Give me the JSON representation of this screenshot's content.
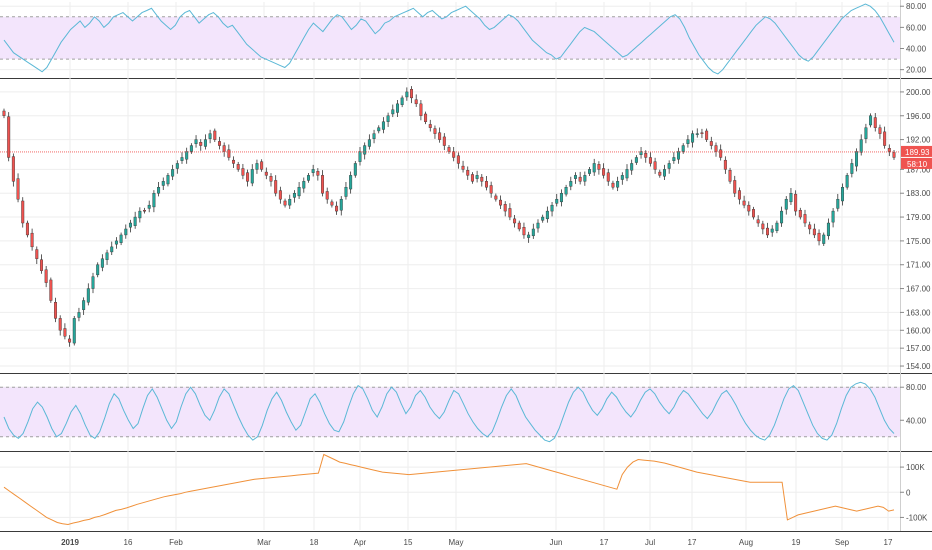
{
  "chart_data": [
    {
      "type": "line",
      "panel": "rsi-top",
      "y_ticks": [
        "80.00",
        "60.00",
        "40.00",
        "20.00"
      ],
      "ylim": [
        14,
        84
      ],
      "band": [
        30,
        70
      ],
      "series": [
        {
          "values": [
            48,
            42,
            36,
            33,
            30,
            27,
            24,
            21,
            18,
            22,
            30,
            38,
            46,
            52,
            58,
            62,
            66,
            60,
            64,
            70,
            66,
            60,
            64,
            70,
            72,
            74,
            70,
            66,
            70,
            74,
            76,
            78,
            72,
            66,
            62,
            58,
            62,
            70,
            74,
            76,
            70,
            64,
            68,
            72,
            74,
            70,
            64,
            60,
            62,
            56,
            50,
            44,
            40,
            36,
            32,
            30,
            28,
            26,
            24,
            22,
            26,
            34,
            42,
            50,
            58,
            64,
            60,
            56,
            62,
            68,
            72,
            70,
            64,
            58,
            62,
            68,
            66,
            60,
            54,
            58,
            64,
            66,
            70,
            72,
            74,
            76,
            78,
            74,
            70,
            74,
            76,
            72,
            68,
            70,
            74,
            76,
            78,
            80,
            76,
            72,
            68,
            62,
            58,
            60,
            64,
            68,
            72,
            70,
            66,
            60,
            54,
            48,
            44,
            40,
            36,
            34,
            30,
            32,
            38,
            44,
            50,
            56,
            60,
            58,
            56,
            52,
            48,
            44,
            40,
            36,
            32,
            34,
            38,
            42,
            46,
            50,
            54,
            58,
            62,
            66,
            70,
            72,
            68,
            60,
            50,
            42,
            34,
            28,
            22,
            18,
            16,
            20,
            26,
            32,
            38,
            44,
            50,
            56,
            62,
            66,
            70,
            68,
            64,
            58,
            52,
            46,
            40,
            34,
            30,
            28,
            32,
            38,
            44,
            50,
            56,
            62,
            68,
            72,
            76,
            78,
            80,
            82,
            80,
            76,
            70,
            62,
            54,
            46
          ]
        }
      ]
    },
    {
      "type": "candlestick",
      "panel": "price",
      "x_tick_labels": [
        "2019",
        "16",
        "Feb",
        "Mar",
        "18",
        "Apr",
        "15",
        "May",
        "Jun",
        "17",
        "Jul",
        "17",
        "Aug",
        "19",
        "Sep",
        "17"
      ],
      "y_ticks": [
        "200.00",
        "196.00",
        "192.00",
        "187.00",
        "183.00",
        "179.00",
        "175.00",
        "171.00",
        "167.00",
        "163.00",
        "160.00",
        "157.00",
        "154.00"
      ],
      "ylim": [
        153,
        202
      ],
      "last_price": "189.93",
      "countdown": "58:10",
      "close": [
        196,
        189,
        185,
        182,
        178,
        176,
        174,
        172,
        170,
        168,
        165,
        162,
        160,
        159,
        158,
        162,
        163,
        165,
        167,
        169,
        171,
        172,
        173,
        174,
        175,
        176,
        177,
        178,
        179,
        180,
        180,
        181,
        183,
        184,
        185,
        186,
        187,
        188,
        189,
        190,
        191,
        192,
        191,
        192,
        193,
        192,
        191,
        190,
        189,
        188,
        187,
        186,
        185,
        187,
        188,
        187,
        186,
        185,
        183,
        182,
        181,
        182,
        183,
        184,
        185,
        186,
        187,
        186,
        183,
        182,
        181,
        180,
        182,
        184,
        186,
        188,
        190,
        191,
        192,
        193,
        194,
        195,
        196,
        197,
        198,
        199,
        200,
        199,
        198,
        196,
        195,
        194,
        193,
        192,
        191,
        190,
        189,
        188,
        187,
        186,
        185,
        186,
        185,
        184,
        183,
        182,
        181,
        180,
        179,
        178,
        177,
        176,
        176,
        177,
        178,
        179,
        180,
        181,
        182,
        183,
        184,
        185,
        186,
        185,
        186,
        187,
        188,
        187,
        186,
        185,
        184,
        185,
        186,
        187,
        188,
        189,
        190,
        189,
        188,
        187,
        186,
        187,
        188,
        189,
        190,
        191,
        192,
        193,
        193,
        193,
        192,
        191,
        190,
        189,
        187,
        185,
        183,
        182,
        181,
        180,
        179,
        178,
        177,
        176,
        177,
        178,
        180,
        182,
        183,
        180,
        179,
        178,
        177,
        176,
        175,
        176,
        178,
        180,
        182,
        184,
        186,
        188,
        190,
        192,
        194,
        196,
        194,
        193,
        191,
        190,
        189
      ]
    },
    {
      "type": "line",
      "panel": "rsi-bottom",
      "y_ticks": [
        "80.00",
        "40.00"
      ],
      "ylim": [
        4,
        96
      ],
      "band": [
        20,
        80
      ],
      "series": [
        {
          "values": [
            44,
            30,
            22,
            18,
            24,
            38,
            54,
            62,
            56,
            44,
            30,
            20,
            24,
            36,
            50,
            58,
            48,
            34,
            22,
            18,
            26,
            42,
            60,
            72,
            66,
            52,
            40,
            30,
            36,
            54,
            70,
            78,
            68,
            54,
            40,
            30,
            38,
            56,
            72,
            80,
            72,
            58,
            46,
            40,
            52,
            68,
            78,
            72,
            58,
            44,
            32,
            22,
            16,
            20,
            34,
            52,
            66,
            74,
            64,
            50,
            38,
            28,
            34,
            50,
            66,
            72,
            62,
            48,
            36,
            28,
            26,
            38,
            56,
            72,
            82,
            78,
            66,
            52,
            44,
            56,
            72,
            80,
            74,
            60,
            48,
            56,
            70,
            76,
            68,
            56,
            48,
            42,
            50,
            64,
            76,
            72,
            60,
            48,
            38,
            30,
            24,
            20,
            26,
            40,
            56,
            70,
            78,
            70,
            56,
            44,
            36,
            28,
            22,
            16,
            14,
            18,
            30,
            46,
            62,
            74,
            80,
            74,
            62,
            52,
            46,
            54,
            66,
            74,
            68,
            58,
            50,
            44,
            52,
            64,
            74,
            78,
            72,
            62,
            54,
            48,
            56,
            68,
            76,
            72,
            64,
            56,
            48,
            42,
            50,
            62,
            72,
            76,
            68,
            58,
            46,
            36,
            28,
            22,
            18,
            16,
            22,
            34,
            50,
            66,
            78,
            82,
            76,
            62,
            48,
            34,
            24,
            18,
            16,
            22,
            36,
            54,
            70,
            80,
            84,
            86,
            84,
            78,
            68,
            54,
            40,
            30,
            24
          ]
        }
      ]
    },
    {
      "type": "line",
      "panel": "obv",
      "y_ticks": [
        "100K",
        "0",
        "-100K"
      ],
      "ylim": [
        -150,
        160
      ],
      "series": [
        {
          "values": [
            20,
            5,
            -10,
            -25,
            -40,
            -55,
            -70,
            -85,
            -100,
            -110,
            -120,
            -125,
            -128,
            -122,
            -118,
            -112,
            -108,
            -100,
            -95,
            -88,
            -80,
            -72,
            -68,
            -62,
            -55,
            -48,
            -42,
            -36,
            -30,
            -24,
            -18,
            -14,
            -10,
            -6,
            0,
            4,
            8,
            12,
            16,
            20,
            24,
            28,
            32,
            36,
            40,
            44,
            48,
            52,
            54,
            56,
            58,
            60,
            62,
            64,
            66,
            68,
            70,
            72,
            74,
            76,
            150,
            140,
            130,
            120,
            115,
            110,
            105,
            100,
            95,
            90,
            85,
            80,
            78,
            76,
            74,
            72,
            70,
            72,
            74,
            76,
            78,
            80,
            82,
            84,
            86,
            88,
            90,
            92,
            94,
            96,
            98,
            100,
            102,
            104,
            106,
            108,
            110,
            112,
            114,
            108,
            102,
            96,
            90,
            84,
            78,
            72,
            66,
            60,
            54,
            48,
            42,
            36,
            30,
            24,
            18,
            12,
            70,
            100,
            120,
            130,
            128,
            126,
            124,
            120,
            116,
            110,
            104,
            98,
            92,
            86,
            80,
            76,
            72,
            68,
            64,
            60,
            56,
            52,
            48,
            44,
            40,
            40,
            40,
            40,
            40,
            40,
            40,
            -110,
            -100,
            -90,
            -85,
            -80,
            -75,
            -70,
            -65,
            -60,
            -55,
            -60,
            -65,
            -70,
            -75,
            -70,
            -65,
            -60,
            -55,
            -60,
            -75,
            -70
          ]
        }
      ]
    }
  ]
}
